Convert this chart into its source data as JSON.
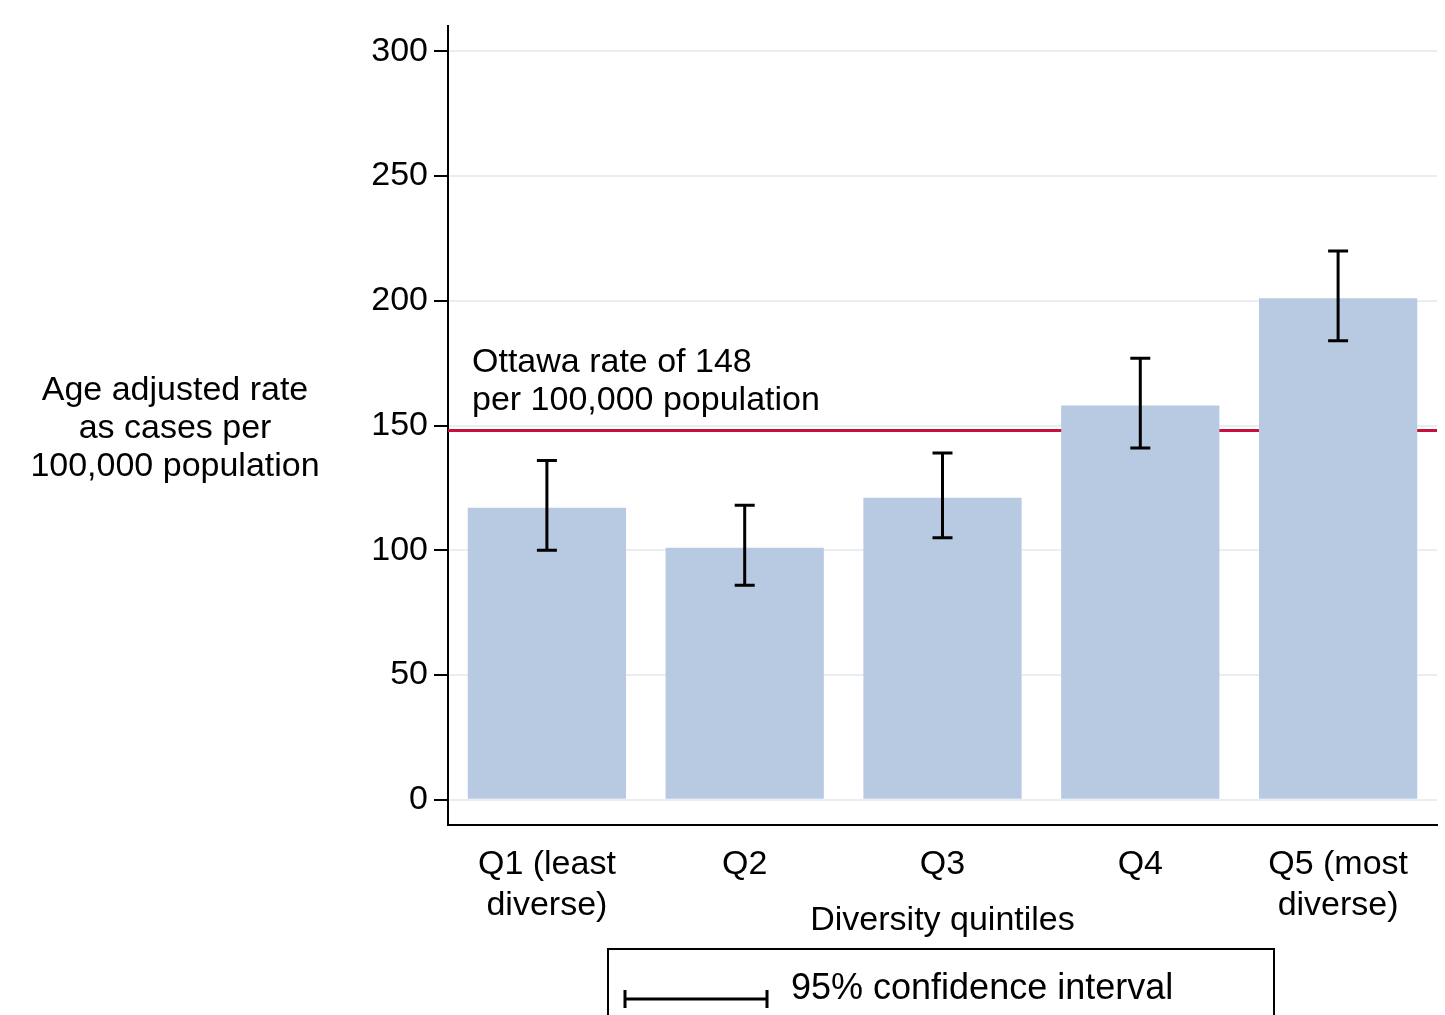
{
  "chart_data": {
    "type": "bar",
    "xlabel": "Diversity quintiles",
    "ylabel": "Age adjusted rate\nas cases per\n100,000 population",
    "categories": [
      "Q1 (least\ndiverse)",
      "Q2",
      "Q3",
      "Q4",
      "Q5 (most\ndiverse)"
    ],
    "values": [
      117,
      101,
      121,
      158,
      201
    ],
    "color": "#b8c9e2",
    "errors": [
      [
        100,
        136
      ],
      [
        86,
        118
      ],
      [
        105,
        139
      ],
      [
        141,
        177
      ],
      [
        184,
        220
      ]
    ],
    "ylim": [
      -10,
      310
    ],
    "yticks": [
      0,
      50,
      100,
      150,
      200,
      250,
      300
    ],
    "grid": "y",
    "ref_lines": [
      {
        "axis": "y",
        "value": 148,
        "label": "Ottawa rate of 148\nper 100,000 population",
        "color": "#c8103c"
      }
    ],
    "annotations": [
      "95% confidence interval"
    ],
    "legend": false
  }
}
